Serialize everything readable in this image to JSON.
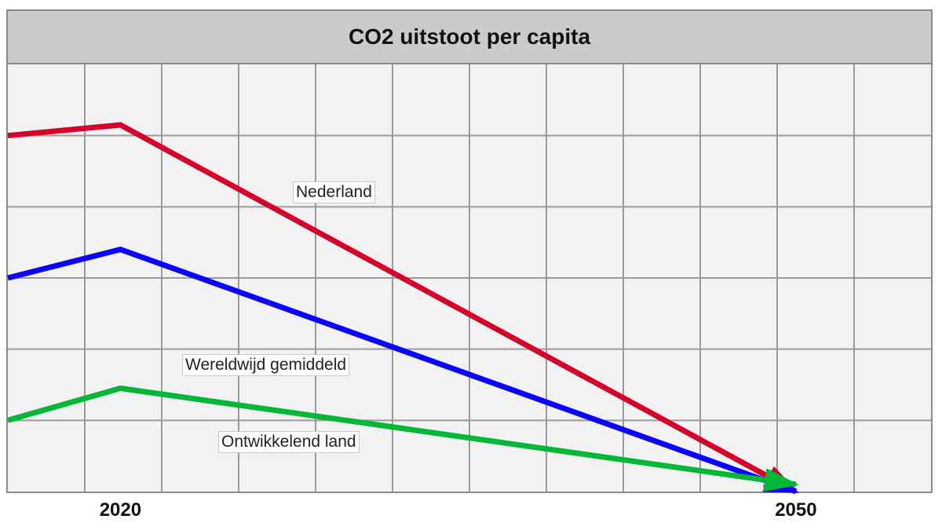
{
  "chart_data": {
    "type": "line",
    "title": "CO2 uitstoot per capita",
    "xlabel": "",
    "ylabel": "",
    "x_ticks": [
      2020,
      2050
    ],
    "xlim": [
      2015,
      2056
    ],
    "ylim": [
      0,
      6
    ],
    "grid": true,
    "legend": "inline-labels",
    "series": [
      {
        "name": "Nederland",
        "color": "#d6002a",
        "x": [
          2015,
          2020,
          2050
        ],
        "y": [
          5.0,
          5.15,
          0
        ]
      },
      {
        "name": "Wereldwijd gemiddeld",
        "color": "#0a00ff",
        "x": [
          2015,
          2020,
          2050
        ],
        "y": [
          3.0,
          3.4,
          0
        ]
      },
      {
        "name": "Ontwikkelend land",
        "color": "#00b836",
        "x": [
          2015,
          2020,
          2050
        ],
        "y": [
          1.0,
          1.45,
          0.1
        ]
      }
    ]
  }
}
